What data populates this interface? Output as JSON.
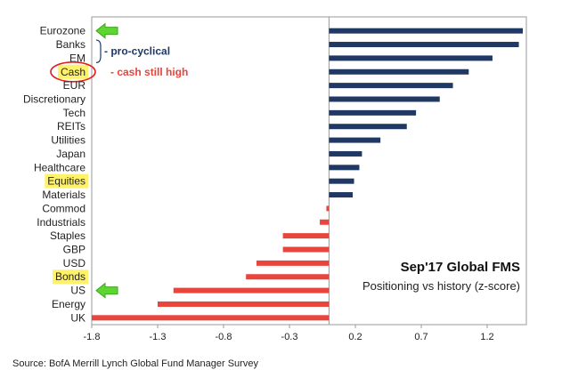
{
  "chart_data": {
    "type": "bar",
    "orientation": "horizontal",
    "title": "Sep'17 Global FMS",
    "subtitle": "Positioning vs history (z-score)",
    "categories": [
      "Eurozone",
      "Banks",
      "EM",
      "Cash",
      "EUR",
      "Discretionary",
      "Tech",
      "REITs",
      "Utilities",
      "Japan",
      "Healthcare",
      "Equities",
      "Materials",
      "Commod",
      "Industrials",
      "Staples",
      "GBP",
      "USD",
      "Bonds",
      "US",
      "Energy",
      "UK"
    ],
    "values": [
      1.47,
      1.44,
      1.24,
      1.06,
      0.94,
      0.84,
      0.66,
      0.59,
      0.39,
      0.25,
      0.23,
      0.19,
      0.18,
      -0.02,
      -0.07,
      -0.35,
      -0.35,
      -0.55,
      -0.63,
      -1.18,
      -1.3,
      -1.8
    ],
    "xlim": [
      -1.8,
      1.47
    ],
    "xticks": [
      "-1.8",
      "-1.3",
      "-0.8",
      "-0.3",
      "0.2",
      "0.7",
      "1.2"
    ],
    "xtick_values": [
      -1.8,
      -1.3,
      -0.8,
      -0.3,
      0.2,
      0.7,
      1.2
    ],
    "positive_color": "#1f3864",
    "negative_color": "#e8453c",
    "highlighted": [
      "Cash",
      "Equities",
      "Bonds"
    ],
    "highlight_color": "#fff26b",
    "circled": [
      "Cash"
    ],
    "arrows_to": [
      "Eurozone",
      "US"
    ],
    "arrow_color": "#5cd631",
    "annotations": {
      "pro_cyclical": "- pro-cyclical",
      "cash_high": "- cash still high"
    },
    "source": "Source: BofA Merrill Lynch Global Fund Manager Survey"
  }
}
